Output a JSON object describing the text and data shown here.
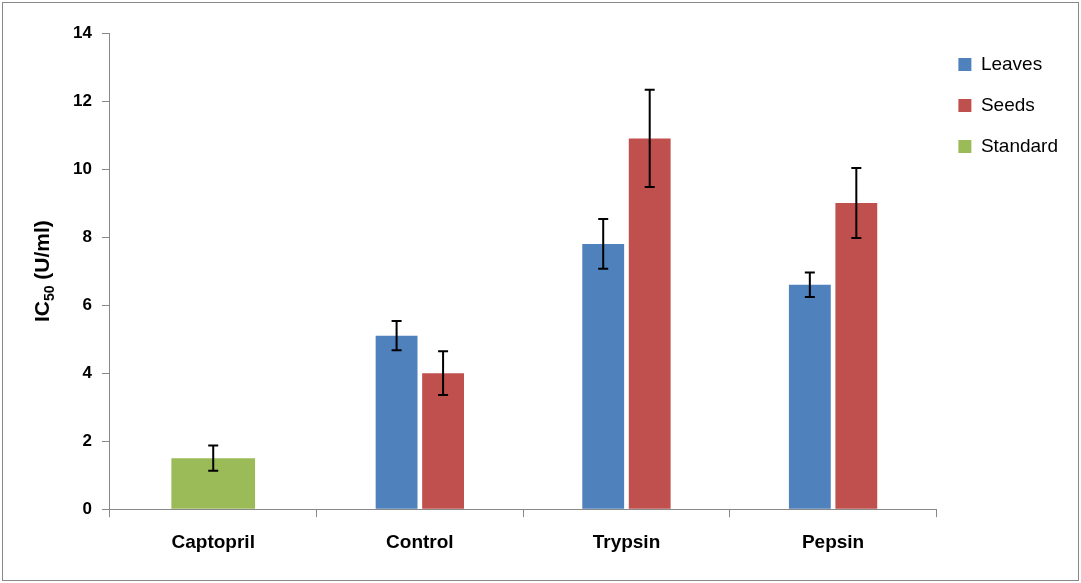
{
  "chart_data": {
    "type": "bar",
    "ylabel": "IC$_{50}$ (U/ml)",
    "categories": [
      "Captopril",
      "Control",
      "Trypsin",
      "Pepsin"
    ],
    "series": [
      {
        "name": "Leaves",
        "color": "#4f81bd",
        "values": [
          null,
          5.1,
          7.8,
          6.6
        ],
        "errors": [
          null,
          0.43,
          0.73,
          0.36
        ]
      },
      {
        "name": "Seeds",
        "color": "#c0504d",
        "values": [
          null,
          4.0,
          10.9,
          9.0
        ],
        "errors": [
          null,
          0.64,
          1.43,
          1.03
        ]
      },
      {
        "name": "Standard",
        "color": "#9bbb59",
        "values": [
          1.5,
          null,
          null,
          null
        ],
        "errors": [
          0.37,
          null,
          null,
          null
        ]
      }
    ],
    "ylim": [
      0,
      14
    ],
    "yticks": [
      0,
      2,
      4,
      6,
      8,
      10,
      12,
      14
    ],
    "grid": false,
    "legend": "top right"
  }
}
